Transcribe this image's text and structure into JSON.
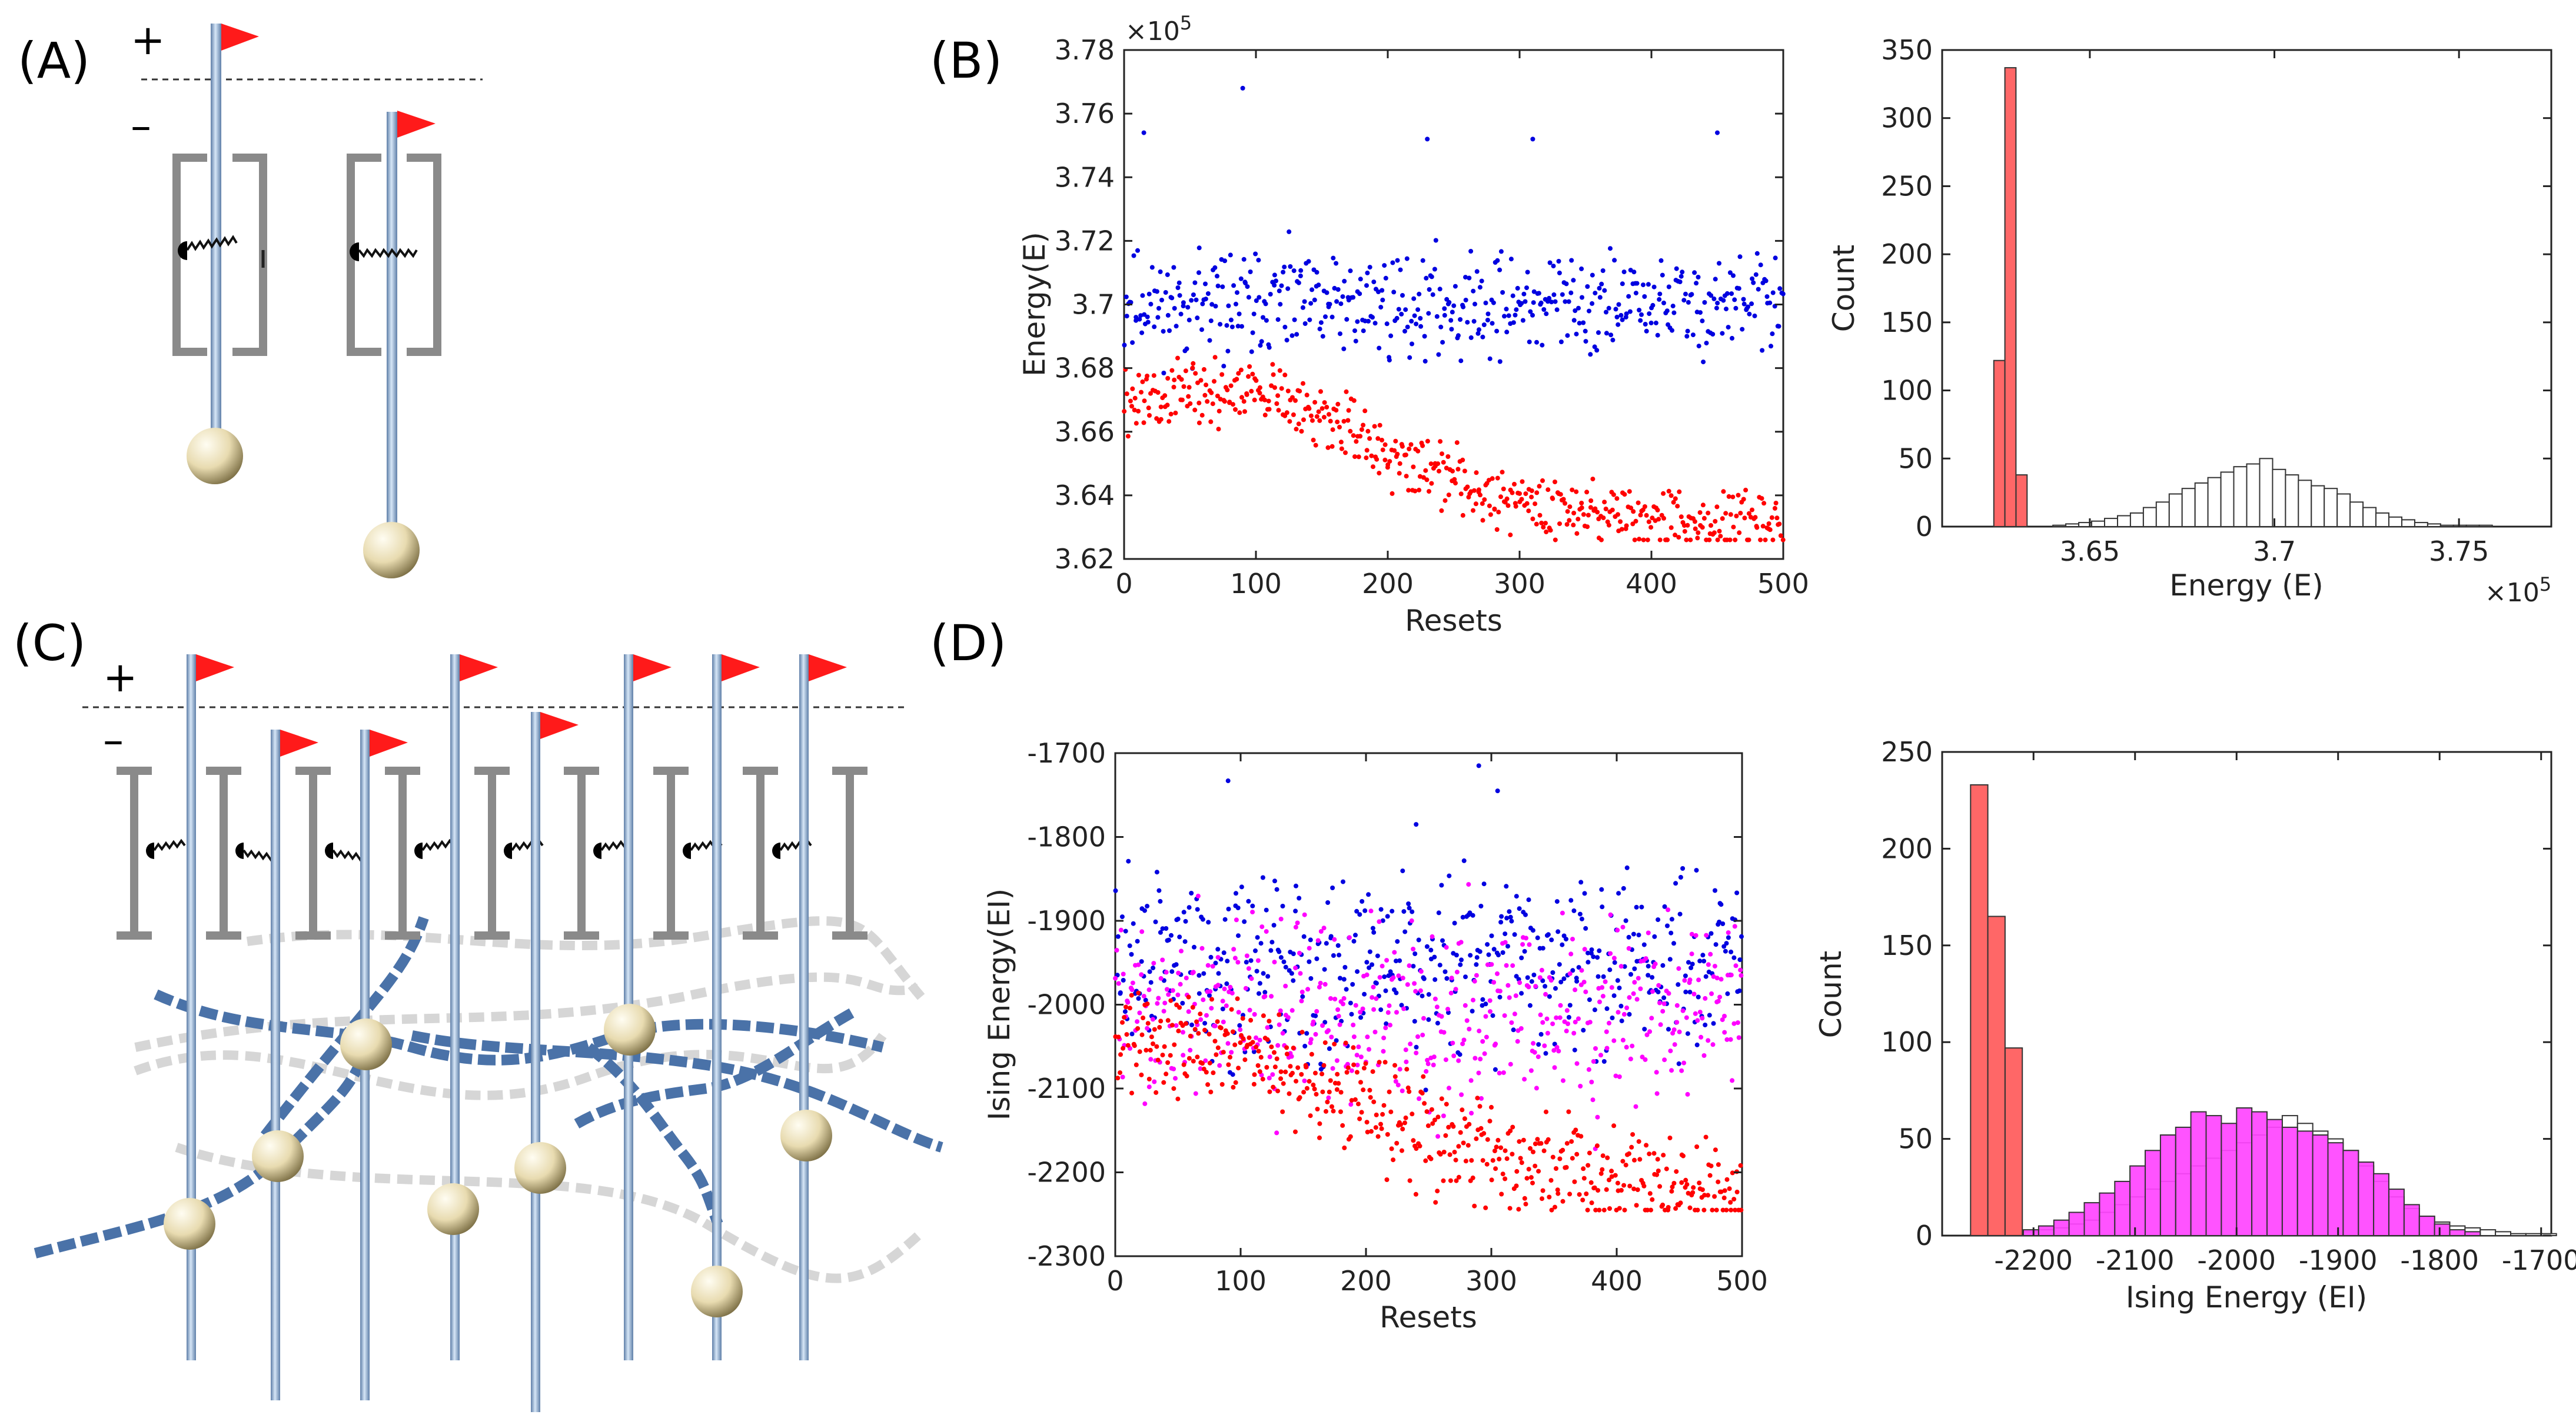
{
  "panel_labels": {
    "a": "(A)",
    "b": "(B)",
    "c": "(C)",
    "d": "(D)"
  },
  "schematic": {
    "plus": "+",
    "minus": "–"
  },
  "colors": {
    "flag": "#ff1a1a",
    "rod": "#8fb0d8",
    "bracket": "#8a8a8a",
    "bead": "#efe3b8",
    "dna": "#4a72a8",
    "dna_ghost": "#cccccc",
    "red": "#ff0000",
    "blue": "#0000e0",
    "magenta": "#ff00ff",
    "hist_red": "#ff5a5a",
    "hist_magenta": "#ff44ff"
  },
  "chart_data": [
    {
      "id": "B-scatter",
      "type": "scatter",
      "xlabel": "Resets",
      "ylabel": "Energy(E)",
      "exponent": "×10",
      "exponent_power": "5",
      "xlim": [
        0,
        500
      ],
      "ylim": [
        3.62,
        3.78
      ],
      "xticks": [
        0,
        100,
        200,
        300,
        400,
        500
      ],
      "xtick_labels": [
        "0",
        "100",
        "200",
        "300",
        "400",
        "500"
      ],
      "yticks": [
        3.62,
        3.64,
        3.66,
        3.68,
        3.7,
        3.72,
        3.74,
        3.76,
        3.78
      ],
      "ytick_labels": [
        "3.62",
        "3.64",
        "3.66",
        "3.68",
        "3.7",
        "3.72",
        "3.74",
        "3.76",
        "3.78"
      ],
      "series": [
        {
          "name": "blue",
          "color": "#0000e0",
          "points": 500,
          "mean": [
            [
              0,
              3.7
            ],
            [
              500,
              3.7
            ]
          ],
          "spread": 0.01,
          "outliers": [
            [
              90,
              3.768
            ],
            [
              15,
              3.754
            ],
            [
              450,
              3.754
            ],
            [
              230,
              3.752
            ],
            [
              310,
              3.752
            ]
          ]
        },
        {
          "name": "red",
          "color": "#ff0000",
          "points": 500,
          "mean": [
            [
              0,
              3.67
            ],
            [
              100,
              3.672
            ],
            [
              160,
              3.663
            ],
            [
              200,
              3.653
            ],
            [
              260,
              3.643
            ],
            [
              300,
              3.638
            ],
            [
              400,
              3.633
            ],
            [
              500,
              3.629
            ]
          ],
          "spread": 0.006,
          "floor": 3.626
        }
      ]
    },
    {
      "id": "B-hist",
      "type": "histogram",
      "xlabel": "Energy (E)",
      "ylabel": "Count",
      "exponent": "×10",
      "exponent_power": "5",
      "xlim": [
        3.61,
        3.775
      ],
      "ylim": [
        0,
        350
      ],
      "xticks": [
        3.65,
        3.7,
        3.75
      ],
      "xtick_labels": [
        "3.65",
        "3.7",
        "3.75"
      ],
      "yticks": [
        0,
        50,
        100,
        150,
        200,
        250,
        300,
        350
      ],
      "ytick_labels": [
        "0",
        "50",
        "100",
        "150",
        "200",
        "250",
        "300",
        "350"
      ],
      "series": [
        {
          "name": "red",
          "fill": "#ff5a5a",
          "edges": [
            3.624,
            3.627,
            3.63,
            3.633
          ],
          "counts": [
            122,
            337,
            38
          ]
        },
        {
          "name": "white",
          "fill": "#ffffff",
          "start": 3.64,
          "width": 0.0035,
          "counts": [
            1,
            2,
            3,
            4,
            6,
            8,
            10,
            14,
            18,
            24,
            28,
            32,
            36,
            40,
            44,
            46,
            50,
            42,
            38,
            34,
            30,
            28,
            24,
            18,
            14,
            10,
            7,
            5,
            3,
            2,
            1,
            1,
            1,
            1
          ]
        }
      ]
    },
    {
      "id": "D-scatter",
      "type": "scatter",
      "xlabel": "Resets",
      "ylabel": "Ising Energy(EI)",
      "xlim": [
        0,
        500
      ],
      "ylim": [
        -2300,
        -1700
      ],
      "xticks": [
        0,
        100,
        200,
        300,
        400,
        500
      ],
      "xtick_labels": [
        "0",
        "100",
        "200",
        "300",
        "400",
        "500"
      ],
      "yticks": [
        -2300,
        -2200,
        -2100,
        -2000,
        -1900,
        -1800,
        -1700
      ],
      "ytick_labels": [
        "-2300",
        "-2200",
        "-2100",
        "-2000",
        "-1900",
        "-1800",
        "-1700"
      ],
      "series": [
        {
          "name": "blue",
          "color": "#0000e0",
          "points": 500,
          "mean": [
            [
              0,
              -1950
            ],
            [
              500,
              -1950
            ]
          ],
          "spread": 65,
          "outliers": [
            [
              90,
              -1733
            ],
            [
              290,
              -1715
            ],
            [
              305,
              -1745
            ],
            [
              240,
              -1785
            ]
          ]
        },
        {
          "name": "magenta",
          "color": "#ff00ff",
          "points": 500,
          "mean": [
            [
              0,
              -2010
            ],
            [
              500,
              -2010
            ]
          ],
          "spread": 70
        },
        {
          "name": "red",
          "color": "#ff0000",
          "points": 500,
          "mean": [
            [
              0,
              -2030
            ],
            [
              100,
              -2060
            ],
            [
              200,
              -2120
            ],
            [
              300,
              -2180
            ],
            [
              400,
              -2210
            ],
            [
              500,
              -2230
            ]
          ],
          "spread": 40,
          "floor": -2245
        }
      ]
    },
    {
      "id": "D-hist",
      "type": "histogram",
      "xlabel": "Ising Energy (EI)",
      "ylabel": "Count",
      "xlim": [
        -2290,
        -1690
      ],
      "ylim": [
        0,
        250
      ],
      "xticks": [
        -2200,
        -2100,
        -2000,
        -1900,
        -1800,
        -1700
      ],
      "xtick_labels": [
        "-2200",
        "-2100",
        "-2000",
        "-1900",
        "-1800",
        "-1700"
      ],
      "yticks": [
        0,
        50,
        100,
        150,
        200,
        250
      ],
      "ytick_labels": [
        "0",
        "50",
        "100",
        "150",
        "200",
        "250"
      ],
      "series": [
        {
          "name": "red",
          "fill": "#ff5a5a",
          "edges": [
            -2262,
            -2245,
            -2228,
            -2211
          ],
          "counts": [
            233,
            165,
            97
          ]
        },
        {
          "name": "white",
          "fill": "#ffffff",
          "start": -2210,
          "width": 15,
          "counts": [
            2,
            3,
            4,
            6,
            8,
            12,
            16,
            20,
            24,
            28,
            32,
            36,
            40,
            44,
            48,
            52,
            56,
            62,
            58,
            54,
            50,
            44,
            36,
            28,
            20,
            14,
            10,
            7,
            5,
            4,
            3,
            2,
            1,
            1,
            1
          ]
        },
        {
          "name": "magenta",
          "fill": "#ff44ff",
          "start": -2210,
          "width": 15,
          "counts": [
            3,
            5,
            8,
            12,
            17,
            22,
            28,
            36,
            44,
            52,
            56,
            64,
            62,
            58,
            66,
            64,
            60,
            56,
            54,
            52,
            48,
            44,
            38,
            32,
            24,
            16,
            10,
            6,
            3,
            2
          ]
        }
      ]
    }
  ]
}
